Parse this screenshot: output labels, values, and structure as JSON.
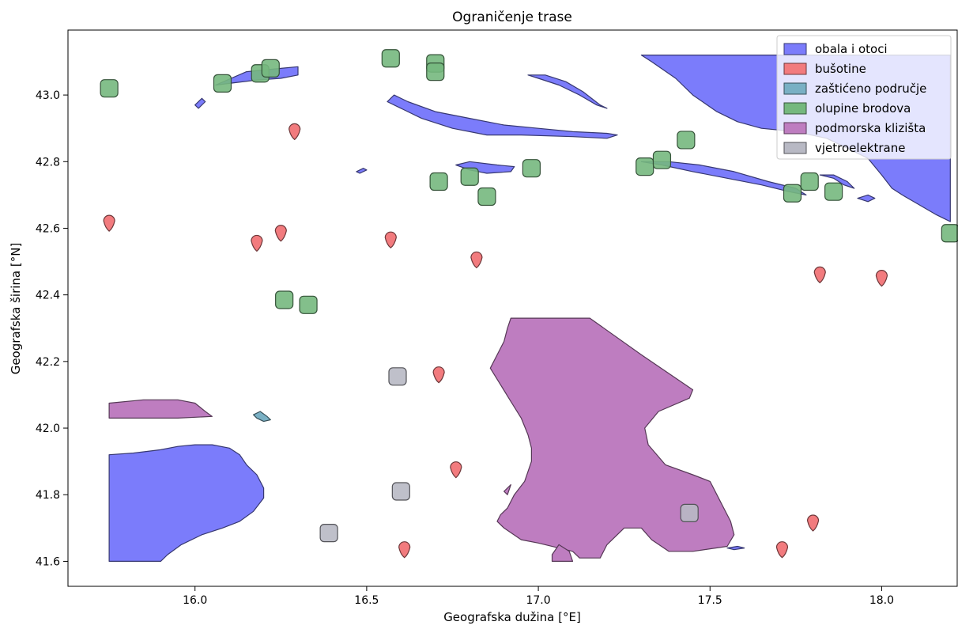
{
  "chart_data": {
    "type": "map",
    "title": "Ograničenje trase",
    "xlabel": "Geografska dužina [°E]",
    "ylabel": "Geografska širina [°N]",
    "xlim": [
      15.63,
      18.22
    ],
    "ylim": [
      41.525,
      43.195
    ],
    "xticks": [
      16.0,
      16.5,
      17.0,
      17.5,
      18.0
    ],
    "xtick_labels": [
      "16.0",
      "16.5",
      "17.0",
      "17.5",
      "18.0"
    ],
    "yticks": [
      41.6,
      41.8,
      42.0,
      42.2,
      42.4,
      42.6,
      42.8,
      43.0
    ],
    "ytick_labels": [
      "41.6",
      "41.8",
      "42.0",
      "42.2",
      "42.4",
      "42.6",
      "42.8",
      "43.0"
    ],
    "grid": false,
    "legend_position": "top-right",
    "legend": [
      {
        "label": "obala i otoci",
        "color": "#7b7cfb"
      },
      {
        "label": "bušotine",
        "color": "#f27b7e"
      },
      {
        "label": "zaštićeno područje",
        "color": "#79b0c4"
      },
      {
        "label": "olupine brodova",
        "color": "#75b87e"
      },
      {
        "label": "podmorska klizišta",
        "color": "#be7dc0"
      },
      {
        "label": "vjetroelektrane",
        "color": "#b8b9c4"
      }
    ],
    "layers": [
      {
        "name": "obala i otoci",
        "color": "#7b7cfb",
        "polygons": [
          [
            [
              15.75,
              41.6
            ],
            [
              15.75,
              41.92
            ],
            [
              15.82,
              41.925
            ],
            [
              15.9,
              41.935
            ],
            [
              15.95,
              41.945
            ],
            [
              16.0,
              41.95
            ],
            [
              16.05,
              41.95
            ],
            [
              16.1,
              41.94
            ],
            [
              16.13,
              41.92
            ],
            [
              16.15,
              41.89
            ],
            [
              16.18,
              41.86
            ],
            [
              16.2,
              41.82
            ],
            [
              16.2,
              41.79
            ],
            [
              16.17,
              41.75
            ],
            [
              16.13,
              41.72
            ],
            [
              16.08,
              41.7
            ],
            [
              16.02,
              41.68
            ],
            [
              15.96,
              41.65
            ],
            [
              15.92,
              41.62
            ],
            [
              15.9,
              41.6
            ]
          ],
          [
            [
              17.3,
              43.12
            ],
            [
              18.2,
              43.12
            ],
            [
              18.2,
              42.62
            ],
            [
              18.16,
              42.64
            ],
            [
              18.11,
              42.67
            ],
            [
              18.06,
              42.7
            ],
            [
              18.03,
              42.72
            ],
            [
              18.0,
              42.76
            ],
            [
              17.96,
              42.81
            ],
            [
              17.9,
              42.84
            ],
            [
              17.84,
              42.87
            ],
            [
              17.75,
              42.89
            ],
            [
              17.65,
              42.9
            ],
            [
              17.58,
              42.92
            ],
            [
              17.52,
              42.95
            ],
            [
              17.45,
              43.0
            ],
            [
              17.4,
              43.05
            ],
            [
              17.33,
              43.1
            ]
          ],
          [
            [
              16.58,
              43.0
            ],
            [
              16.62,
              42.98
            ],
            [
              16.7,
              42.95
            ],
            [
              16.8,
              42.93
            ],
            [
              16.9,
              42.91
            ],
            [
              17.0,
              42.9
            ],
            [
              17.1,
              42.89
            ],
            [
              17.2,
              42.885
            ],
            [
              17.23,
              42.88
            ],
            [
              17.2,
              42.87
            ],
            [
              17.1,
              42.875
            ],
            [
              16.95,
              42.88
            ],
            [
              16.85,
              42.88
            ],
            [
              16.75,
              42.9
            ],
            [
              16.66,
              42.93
            ],
            [
              16.6,
              42.96
            ],
            [
              16.56,
              42.98
            ]
          ],
          [
            [
              16.97,
              43.06
            ],
            [
              17.0,
              43.05
            ],
            [
              17.06,
              43.03
            ],
            [
              17.12,
              43.0
            ],
            [
              17.17,
              42.97
            ],
            [
              17.2,
              42.96
            ],
            [
              17.18,
              42.97
            ],
            [
              17.13,
              43.01
            ],
            [
              17.08,
              43.04
            ],
            [
              17.02,
              43.06
            ]
          ],
          [
            [
              17.3,
              42.8
            ],
            [
              17.36,
              42.79
            ],
            [
              17.45,
              42.77
            ],
            [
              17.55,
              42.75
            ],
            [
              17.65,
              42.73
            ],
            [
              17.73,
              42.71
            ],
            [
              17.78,
              42.7
            ],
            [
              17.75,
              42.72
            ],
            [
              17.67,
              42.74
            ],
            [
              17.57,
              42.77
            ],
            [
              17.47,
              42.79
            ],
            [
              17.38,
              42.8
            ]
          ],
          [
            [
              16.06,
              43.03
            ],
            [
              16.15,
              43.07
            ],
            [
              16.25,
              43.08
            ],
            [
              16.3,
              43.085
            ],
            [
              16.3,
              43.06
            ],
            [
              16.25,
              43.05
            ],
            [
              16.18,
              43.045
            ],
            [
              16.1,
              43.035
            ]
          ],
          [
            [
              16.0,
              42.97
            ],
            [
              16.02,
              42.99
            ],
            [
              16.03,
              42.98
            ],
            [
              16.01,
              42.96
            ]
          ],
          [
            [
              16.47,
              42.77
            ],
            [
              16.49,
              42.78
            ],
            [
              16.5,
              42.775
            ],
            [
              16.48,
              42.765
            ]
          ],
          [
            [
              16.76,
              42.79
            ],
            [
              16.8,
              42.8
            ],
            [
              16.88,
              42.79
            ],
            [
              16.93,
              42.785
            ],
            [
              16.92,
              42.77
            ],
            [
              16.85,
              42.765
            ],
            [
              16.8,
              42.775
            ]
          ],
          [
            [
              17.82,
              42.76
            ],
            [
              17.86,
              42.75
            ],
            [
              17.89,
              42.73
            ],
            [
              17.92,
              42.72
            ],
            [
              17.9,
              42.74
            ],
            [
              17.86,
              42.76
            ]
          ],
          [
            [
              17.93,
              42.69
            ],
            [
              17.96,
              42.7
            ],
            [
              17.98,
              42.69
            ],
            [
              17.96,
              42.68
            ]
          ],
          [
            [
              17.55,
              41.64
            ],
            [
              17.58,
              41.645
            ],
            [
              17.6,
              41.64
            ],
            [
              17.57,
              41.635
            ]
          ]
        ]
      },
      {
        "name": "bušotine",
        "color": "#f27b7e",
        "points": [
          [
            16.29,
            42.89
          ],
          [
            15.75,
            42.615
          ],
          [
            16.18,
            42.555
          ],
          [
            16.25,
            42.585
          ],
          [
            16.57,
            42.565
          ],
          [
            16.82,
            42.505
          ],
          [
            17.82,
            42.46
          ],
          [
            18.0,
            42.45
          ],
          [
            16.71,
            42.16
          ],
          [
            16.76,
            41.875
          ],
          [
            17.8,
            41.715
          ],
          [
            17.71,
            41.635
          ],
          [
            16.61,
            41.635
          ]
        ]
      },
      {
        "name": "zaštićeno područje",
        "color": "#79b0c4",
        "polygons": [
          [
            [
              16.17,
              42.04
            ],
            [
              16.19,
              42.05
            ],
            [
              16.21,
              42.035
            ],
            [
              16.22,
              42.025
            ],
            [
              16.2,
              42.02
            ],
            [
              16.18,
              42.03
            ]
          ]
        ]
      },
      {
        "name": "olupine brodova",
        "color": "#75b87e",
        "points": [
          [
            15.75,
            43.02
          ],
          [
            16.08,
            43.035
          ],
          [
            16.19,
            43.065
          ],
          [
            16.22,
            43.08
          ],
          [
            16.57,
            43.11
          ],
          [
            16.7,
            43.095
          ],
          [
            16.7,
            43.07
          ],
          [
            16.71,
            42.74
          ],
          [
            16.8,
            42.755
          ],
          [
            16.85,
            42.695
          ],
          [
            16.98,
            42.78
          ],
          [
            17.31,
            42.785
          ],
          [
            17.36,
            42.805
          ],
          [
            17.43,
            42.865
          ],
          [
            17.74,
            42.705
          ],
          [
            17.79,
            42.74
          ],
          [
            17.86,
            42.71
          ],
          [
            18.2,
            42.585
          ],
          [
            16.26,
            42.385
          ],
          [
            16.33,
            42.37
          ]
        ]
      },
      {
        "name": "podmorska klizišta",
        "color": "#be7dc0",
        "polygons": [
          [
            [
              15.75,
              42.03
            ],
            [
              15.75,
              42.075
            ],
            [
              15.85,
              42.085
            ],
            [
              15.95,
              42.085
            ],
            [
              16.0,
              42.075
            ],
            [
              16.03,
              42.05
            ],
            [
              16.05,
              42.035
            ],
            [
              15.95,
              42.03
            ],
            [
              15.85,
              42.03
            ]
          ],
          [
            [
              16.92,
              42.33
            ],
            [
              17.15,
              42.33
            ],
            [
              17.3,
              42.22
            ],
            [
              17.4,
              42.15
            ],
            [
              17.45,
              42.115
            ],
            [
              17.44,
              42.09
            ],
            [
              17.35,
              42.05
            ],
            [
              17.31,
              42.0
            ],
            [
              17.32,
              41.95
            ],
            [
              17.37,
              41.89
            ],
            [
              17.45,
              41.86
            ],
            [
              17.5,
              41.84
            ],
            [
              17.53,
              41.78
            ],
            [
              17.56,
              41.72
            ],
            [
              17.57,
              41.68
            ],
            [
              17.55,
              41.645
            ],
            [
              17.45,
              41.63
            ],
            [
              17.38,
              41.63
            ],
            [
              17.33,
              41.665
            ],
            [
              17.3,
              41.7
            ],
            [
              17.25,
              41.7
            ],
            [
              17.2,
              41.65
            ],
            [
              17.18,
              41.61
            ],
            [
              17.12,
              41.61
            ],
            [
              17.1,
              41.63
            ],
            [
              17.0,
              41.655
            ],
            [
              16.95,
              41.665
            ],
            [
              16.9,
              41.7
            ],
            [
              16.88,
              41.72
            ],
            [
              16.89,
              41.74
            ],
            [
              16.91,
              41.76
            ],
            [
              16.93,
              41.8
            ],
            [
              16.96,
              41.84
            ],
            [
              16.98,
              41.9
            ],
            [
              16.98,
              41.94
            ],
            [
              16.97,
              41.98
            ],
            [
              16.95,
              42.03
            ],
            [
              16.92,
              42.08
            ],
            [
              16.89,
              42.13
            ],
            [
              16.86,
              42.18
            ],
            [
              16.88,
              42.22
            ],
            [
              16.9,
              42.26
            ],
            [
              16.91,
              42.3
            ]
          ],
          [
            [
              17.04,
              41.6
            ],
            [
              17.1,
              41.6
            ],
            [
              17.09,
              41.63
            ],
            [
              17.06,
              41.65
            ],
            [
              17.04,
              41.62
            ]
          ],
          [
            [
              16.91,
              41.82
            ],
            [
              16.92,
              41.83
            ],
            [
              16.91,
              41.8
            ],
            [
              16.9,
              41.81
            ]
          ]
        ]
      },
      {
        "name": "vjetroelektrane",
        "color": "#b8b9c4",
        "points": [
          [
            16.59,
            42.155
          ],
          [
            16.6,
            41.81
          ],
          [
            16.39,
            41.685
          ],
          [
            17.44,
            41.745
          ]
        ]
      }
    ]
  }
}
